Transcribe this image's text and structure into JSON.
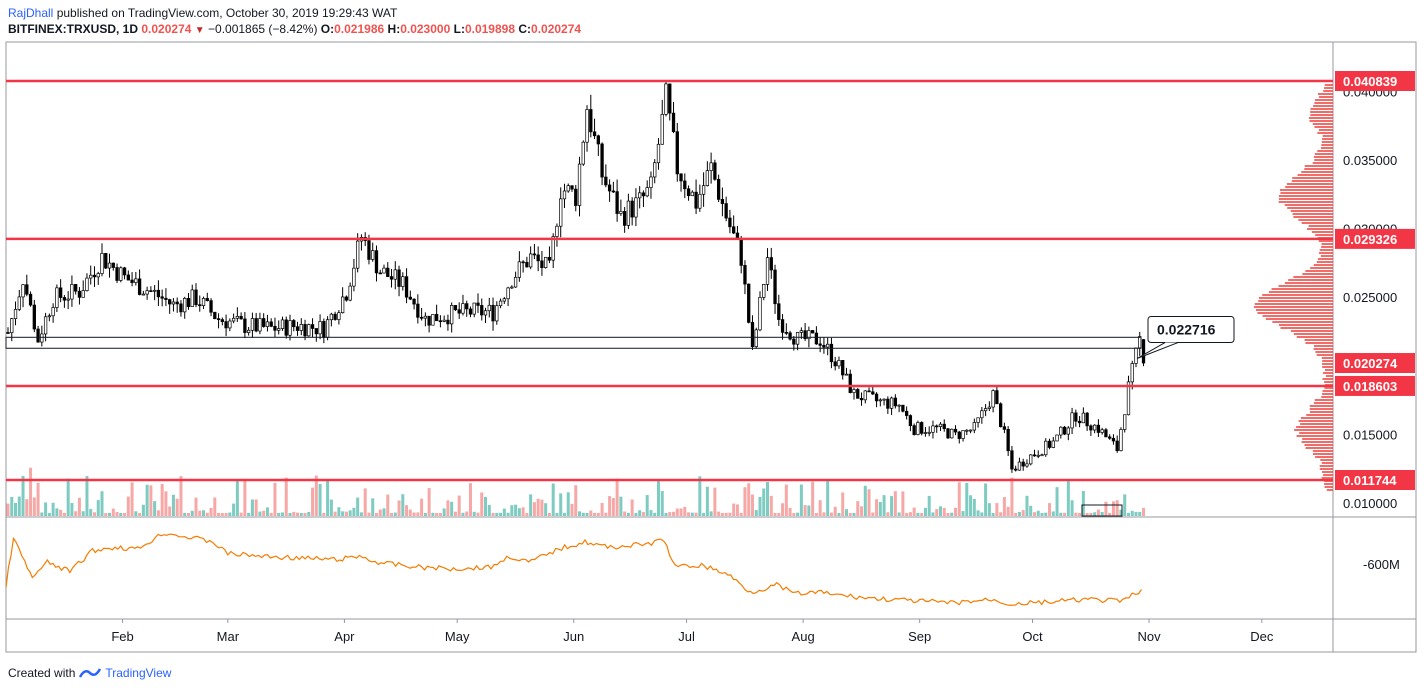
{
  "header": {
    "author": "RajDhall",
    "published_text": "published on TradingView.com, October 30, 2019 19:29:43 WAT",
    "symbol": "BITFINEX:TRXUSD, 1D",
    "last": "0.020274",
    "change": "−0.001865 (−8.42%)",
    "o_label": "O:",
    "o_value": "0.021986",
    "h_label": "H:",
    "h_value": "0.023000",
    "l_label": "L:",
    "l_value": "0.019898",
    "c_label": "C:",
    "c_value": "0.020274"
  },
  "footer": {
    "created_with": "Created with",
    "brand": "TradingView"
  },
  "colors": {
    "up": "#26a69a",
    "down": "#ef5350",
    "candle": "#000000",
    "hline": "#f23645",
    "obv": "#f57c00",
    "vol_up": "#7ecbc1",
    "vol_down": "#f6a8a6"
  },
  "chart_data": {
    "type": "candlestick",
    "price_axis_ticks": [
      "0.040000",
      "0.035000",
      "0.030000",
      "0.025000",
      "0.015000",
      "0.010000"
    ],
    "ylim": [
      0.0093,
      0.0425
    ],
    "x_labels": [
      "Feb",
      "Mar",
      "Apr",
      "May",
      "Jun",
      "Jul",
      "Aug",
      "Sep",
      "Oct",
      "Nov",
      "Dec"
    ],
    "horizontal_levels": [
      {
        "label": "0.040839",
        "value": 0.040839
      },
      {
        "label": "0.029326",
        "value": 0.029326
      },
      {
        "label": "0.018603",
        "value": 0.018603
      },
      {
        "label": "0.011744",
        "value": 0.011744
      }
    ],
    "last_price_label": "0.020274",
    "last_price": 0.020274,
    "annotation": {
      "text": "0.022716",
      "value": 0.022716
    },
    "obv_axis_label": "-600M",
    "close_path": [
      [
        "2019-01-01",
        0.0225
      ],
      [
        "2019-01-05",
        0.0265
      ],
      [
        "2019-01-09",
        0.022
      ],
      [
        "2019-01-13",
        0.025
      ],
      [
        "2019-01-20",
        0.0255
      ],
      [
        "2019-01-26",
        0.028
      ],
      [
        "2019-02-01",
        0.0265
      ],
      [
        "2019-02-08",
        0.0255
      ],
      [
        "2019-02-14",
        0.0245
      ],
      [
        "2019-02-20",
        0.025
      ],
      [
        "2019-02-26",
        0.0235
      ],
      [
        "2019-03-05",
        0.023
      ],
      [
        "2019-03-12",
        0.0228
      ],
      [
        "2019-03-19",
        0.023
      ],
      [
        "2019-03-26",
        0.0228
      ],
      [
        "2019-04-01",
        0.0255
      ],
      [
        "2019-04-05",
        0.0295
      ],
      [
        "2019-04-10",
        0.027
      ],
      [
        "2019-04-16",
        0.026
      ],
      [
        "2019-04-22",
        0.0235
      ],
      [
        "2019-04-28",
        0.0238
      ],
      [
        "2019-05-04",
        0.024
      ],
      [
        "2019-05-10",
        0.024
      ],
      [
        "2019-05-15",
        0.0265
      ],
      [
        "2019-05-20",
        0.028
      ],
      [
        "2019-05-25",
        0.027
      ],
      [
        "2019-05-28",
        0.033
      ],
      [
        "2019-06-01",
        0.0325
      ],
      [
        "2019-06-04",
        0.039
      ],
      [
        "2019-06-08",
        0.034
      ],
      [
        "2019-06-13",
        0.031
      ],
      [
        "2019-06-18",
        0.032
      ],
      [
        "2019-06-21",
        0.033
      ],
      [
        "2019-06-25",
        0.0395
      ],
      [
        "2019-06-28",
        0.0345
      ],
      [
        "2019-07-03",
        0.032
      ],
      [
        "2019-07-07",
        0.0345
      ],
      [
        "2019-07-11",
        0.031
      ],
      [
        "2019-07-15",
        0.028
      ],
      [
        "2019-07-18",
        0.021
      ],
      [
        "2019-07-22",
        0.028
      ],
      [
        "2019-07-25",
        0.0235
      ],
      [
        "2019-07-30",
        0.022
      ],
      [
        "2019-08-05",
        0.022
      ],
      [
        "2019-08-09",
        0.0205
      ],
      [
        "2019-08-14",
        0.018
      ],
      [
        "2019-08-20",
        0.0175
      ],
      [
        "2019-08-26",
        0.0172
      ],
      [
        "2019-08-30",
        0.0155
      ],
      [
        "2019-09-05",
        0.0155
      ],
      [
        "2019-09-10",
        0.015
      ],
      [
        "2019-09-15",
        0.0155
      ],
      [
        "2019-09-20",
        0.018
      ],
      [
        "2019-09-23",
        0.015
      ],
      [
        "2019-09-25",
        0.0125
      ],
      [
        "2019-09-30",
        0.0135
      ],
      [
        "2019-10-06",
        0.0145
      ],
      [
        "2019-10-12",
        0.0165
      ],
      [
        "2019-10-18",
        0.0155
      ],
      [
        "2019-10-23",
        0.014
      ],
      [
        "2019-10-26",
        0.0185
      ],
      [
        "2019-10-29",
        0.022
      ],
      [
        "2019-10-30",
        0.0203
      ]
    ],
    "obv_relative_path": [
      [
        "2019-01-01",
        0.3
      ],
      [
        "2019-01-03",
        0.82
      ],
      [
        "2019-01-06",
        0.55
      ],
      [
        "2019-01-08",
        0.38
      ],
      [
        "2019-01-12",
        0.55
      ],
      [
        "2019-01-18",
        0.45
      ],
      [
        "2019-01-24",
        0.68
      ],
      [
        "2019-01-30",
        0.72
      ],
      [
        "2019-02-05",
        0.7
      ],
      [
        "2019-02-12",
        0.88
      ],
      [
        "2019-02-20",
        0.82
      ],
      [
        "2019-02-25",
        0.78
      ],
      [
        "2019-03-01",
        0.65
      ],
      [
        "2019-03-10",
        0.62
      ],
      [
        "2019-03-20",
        0.6
      ],
      [
        "2019-03-30",
        0.58
      ],
      [
        "2019-04-05",
        0.62
      ],
      [
        "2019-04-10",
        0.55
      ],
      [
        "2019-04-20",
        0.5
      ],
      [
        "2019-04-30",
        0.48
      ],
      [
        "2019-05-10",
        0.5
      ],
      [
        "2019-05-15",
        0.62
      ],
      [
        "2019-05-20",
        0.55
      ],
      [
        "2019-05-28",
        0.7
      ],
      [
        "2019-06-04",
        0.78
      ],
      [
        "2019-06-10",
        0.72
      ],
      [
        "2019-06-20",
        0.75
      ],
      [
        "2019-06-25",
        0.8
      ],
      [
        "2019-06-28",
        0.5
      ],
      [
        "2019-07-05",
        0.52
      ],
      [
        "2019-07-12",
        0.42
      ],
      [
        "2019-07-18",
        0.22
      ],
      [
        "2019-07-25",
        0.3
      ],
      [
        "2019-07-30",
        0.2
      ],
      [
        "2019-08-05",
        0.22
      ],
      [
        "2019-08-12",
        0.18
      ],
      [
        "2019-08-20",
        0.15
      ],
      [
        "2019-09-01",
        0.12
      ],
      [
        "2019-09-10",
        0.1
      ],
      [
        "2019-09-20",
        0.14
      ],
      [
        "2019-09-25",
        0.09
      ],
      [
        "2019-10-05",
        0.11
      ],
      [
        "2019-10-15",
        0.14
      ],
      [
        "2019-10-25",
        0.12
      ],
      [
        "2019-10-30",
        0.25
      ]
    ]
  }
}
